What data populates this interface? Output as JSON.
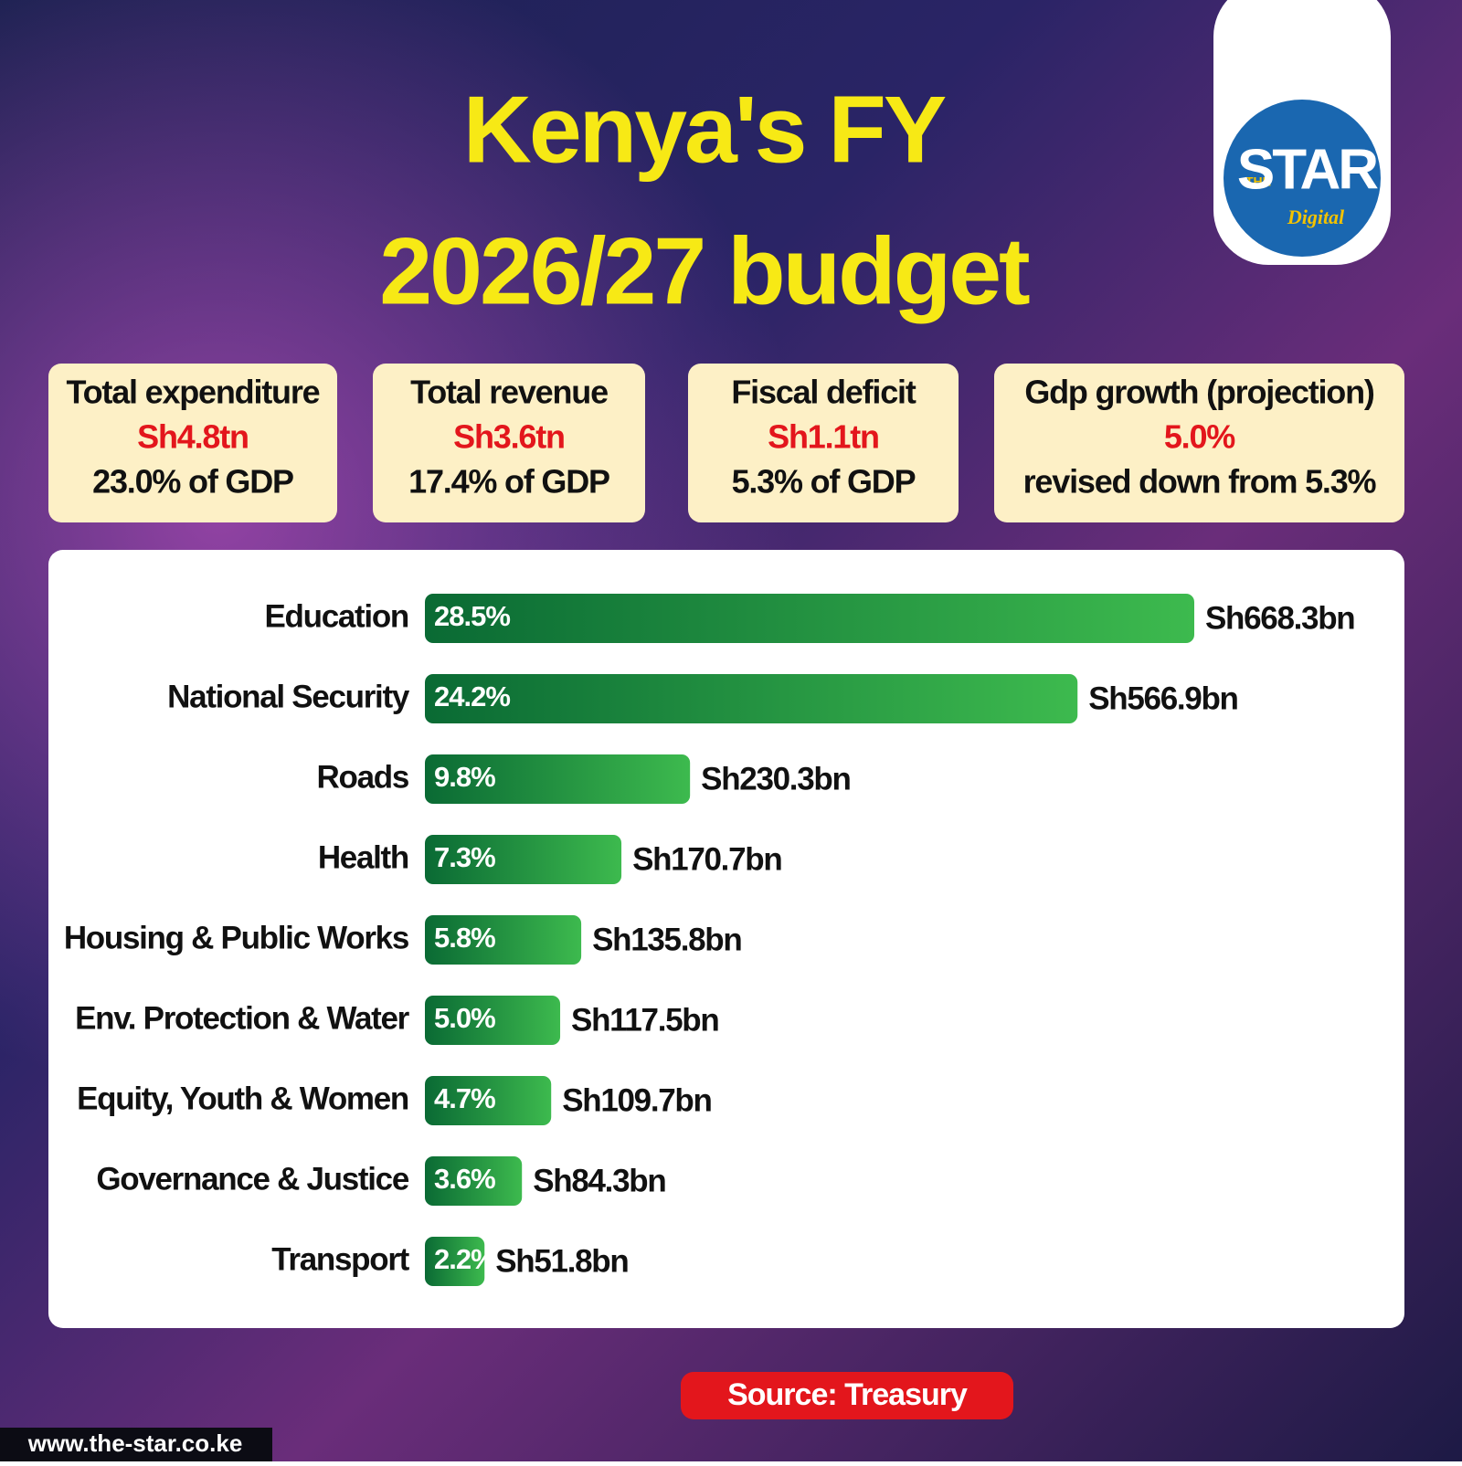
{
  "chart_data": {
    "type": "bar",
    "orientation": "horizontal",
    "title": [
      "Kenya's FY",
      "2026/27 budget"
    ],
    "categories": [
      "Education",
      "National Security",
      "Roads",
      "Health",
      "Housing & Public Works",
      "Env. Protection & Water",
      "Equity, Youth & Women",
      "Governance & Justice",
      "Transport"
    ],
    "values": [
      668.3,
      566.9,
      230.3,
      170.7,
      135.8,
      117.5,
      109.7,
      84.3,
      51.8
    ],
    "value_labels": [
      "Sh668.3bn",
      "Sh566.9bn",
      "Sh230.3bn",
      "Sh170.7bn",
      "Sh135.8bn",
      "Sh117.5bn",
      "Sh109.7bn",
      "Sh84.3bn",
      "Sh51.8bn"
    ],
    "shares": [
      28.5,
      24.2,
      9.8,
      7.3,
      5.8,
      5.0,
      4.7,
      3.6,
      2.2
    ],
    "share_labels": [
      "28.5%",
      "24.2%",
      "9.8%",
      "7.3%",
      "5.8%",
      "5.0%",
      "4.7%",
      "3.6%",
      "2.2%"
    ],
    "color": [
      "#0a6a34",
      "#3dba4e"
    ],
    "source": "Source: Treasury"
  },
  "cards": [
    {
      "title": "Total expenditure",
      "value": "Sh4.8tn",
      "note": "23.0% of GDP"
    },
    {
      "title": "Total revenue",
      "value": "Sh3.6tn",
      "note": "17.4% of GDP"
    },
    {
      "title": "Fiscal deficit",
      "value": "Sh1.1tn",
      "note": "5.3% of GDP"
    },
    {
      "title": "Gdp growth (projection)",
      "value": "5.0%",
      "note": "revised down from 5.3%"
    }
  ],
  "logo": {
    "the": "THE",
    "name": "STAR",
    "sub": "Digital"
  },
  "url": "www.the-star.co.ke"
}
